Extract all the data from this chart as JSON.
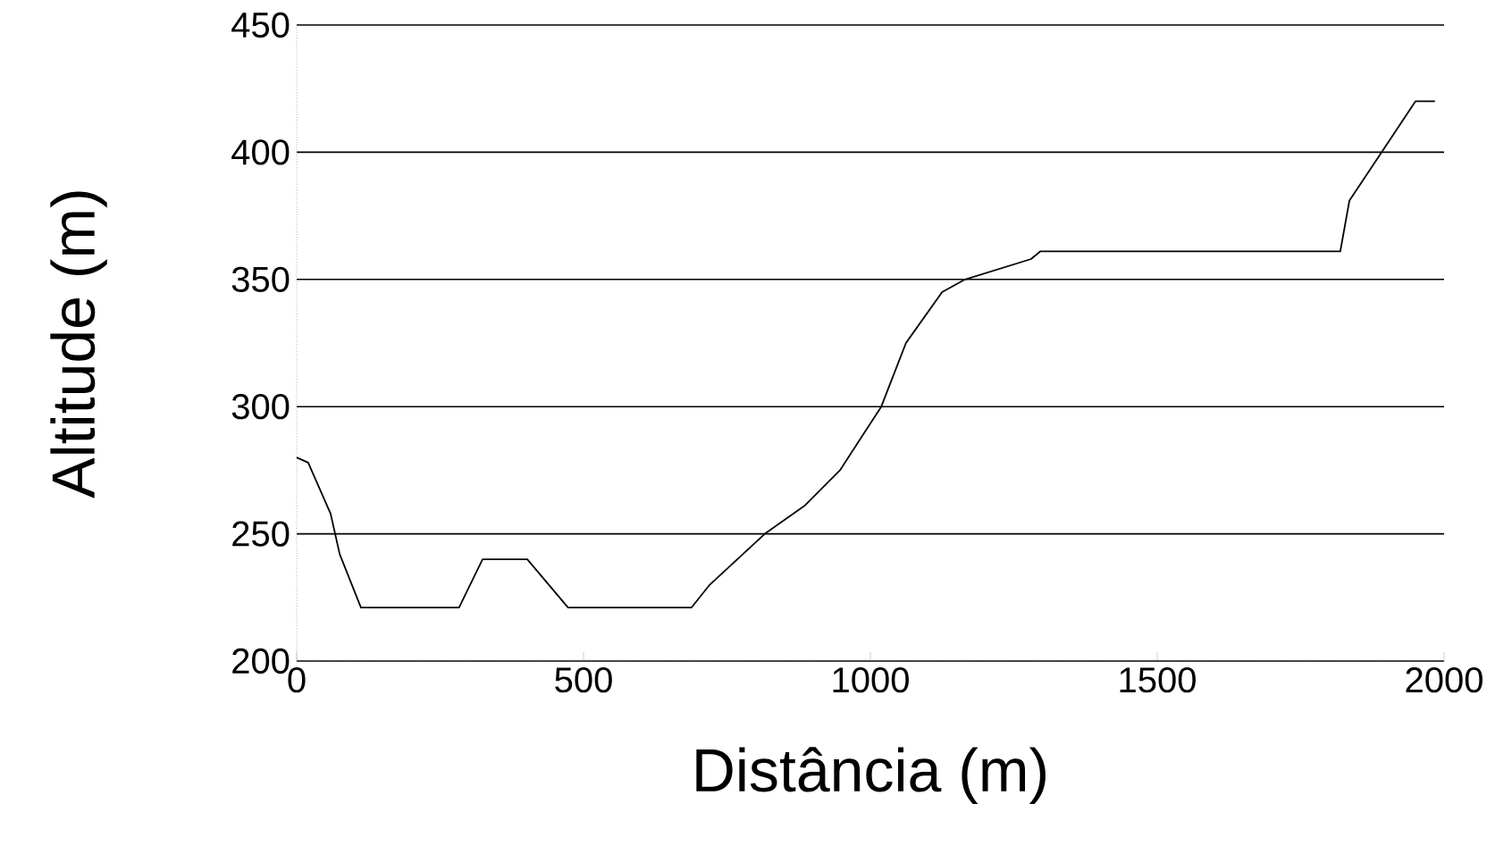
{
  "chart_data": {
    "type": "line",
    "xlabel": "Distância (m)",
    "ylabel": "Altitude (m)",
    "x": [
      0,
      20,
      59,
      75,
      112,
      283,
      324,
      402,
      473,
      688,
      720,
      816,
      885,
      947,
      1019,
      1062,
      1125,
      1165,
      1280,
      1296,
      1819,
      1835,
      1891,
      1950,
      1984
    ],
    "series": [
      {
        "color": "#000000",
        "values": [
          280,
          278,
          258,
          242,
          221,
          221,
          240,
          240,
          221,
          221,
          230,
          250,
          261,
          275,
          300,
          325,
          345,
          350,
          358,
          361,
          361,
          381,
          400,
          420,
          420
        ]
      }
    ],
    "xlim": [
      0,
      2000
    ],
    "ylim": [
      200,
      450
    ],
    "xticks": [
      0,
      500,
      1000,
      1500,
      2000
    ],
    "yticks": [
      200,
      250,
      300,
      350,
      400,
      450
    ],
    "grid": "y",
    "marker": "none",
    "line_style": "solid"
  }
}
